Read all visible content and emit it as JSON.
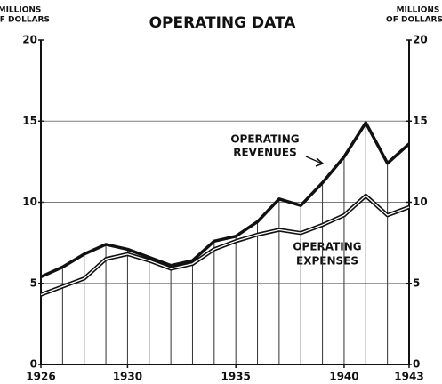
{
  "chart_data": {
    "type": "line",
    "title": "OPERATING DATA",
    "ylabel": [
      "MILLIONS",
      "OF DOLLARS"
    ],
    "y2label": [
      "MILLIONS",
      "OF DOLLARS"
    ],
    "x": [
      1926,
      1927,
      1928,
      1929,
      1930,
      1931,
      1932,
      1933,
      1934,
      1935,
      1936,
      1937,
      1938,
      1939,
      1940,
      1941,
      1942,
      1943
    ],
    "xlim": [
      1926,
      1943
    ],
    "xticks": [
      1926,
      1930,
      1935,
      1940,
      1943
    ],
    "ylim": [
      0,
      20
    ],
    "yticks": [
      0,
      5,
      10,
      15,
      20
    ],
    "y2lim": [
      0,
      20
    ],
    "y2ticks": [
      0,
      5,
      10,
      15,
      20
    ],
    "grid": true,
    "series": [
      {
        "name": [
          "OPERATING",
          "REVENUES"
        ],
        "color": "#111111",
        "values": [
          5.4,
          6.0,
          6.8,
          7.4,
          7.1,
          6.6,
          6.1,
          6.4,
          7.6,
          7.9,
          8.8,
          10.2,
          9.8,
          11.2,
          12.8,
          14.9,
          12.4,
          13.6
        ]
      },
      {
        "name": [
          "OPERATING",
          "EXPENSES"
        ],
        "color": "#111111",
        "values": [
          4.3,
          4.8,
          5.3,
          6.5,
          6.8,
          6.4,
          5.9,
          6.2,
          7.1,
          7.6,
          8.0,
          8.3,
          8.1,
          8.6,
          9.2,
          10.4,
          9.2,
          9.7
        ]
      }
    ]
  }
}
